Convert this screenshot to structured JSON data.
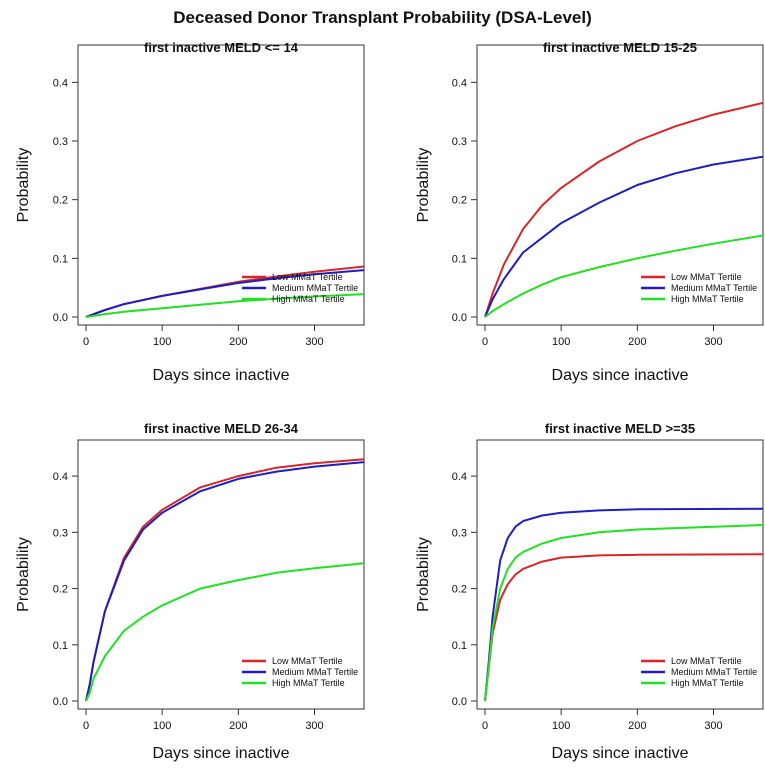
{
  "figure": {
    "title": "Deceased Donor Transplant Probability (DSA-Level)"
  },
  "series_colors": {
    "Low MMaT Tertile": "#d62728",
    "Medium MMaT Tertile": "#1f1fbf",
    "High MMaT Tertile": "#22e022"
  },
  "chart_data": [
    {
      "type": "line",
      "title": "first inactive MELD <= 14",
      "xlabel": "Days since inactive",
      "ylabel": "Probability",
      "xlim": [
        0,
        365
      ],
      "ylim": [
        0,
        0.45
      ],
      "xticks": [
        0,
        100,
        200,
        300
      ],
      "yticks": [
        0.0,
        0.1,
        0.2,
        0.3,
        0.4
      ],
      "legend": "bottom-right",
      "series": [
        {
          "name": "Low MMaT Tertile",
          "x": [
            0,
            25,
            50,
            100,
            150,
            200,
            250,
            300,
            365
          ],
          "y": [
            0,
            0.012,
            0.022,
            0.036,
            0.048,
            0.06,
            0.069,
            0.077,
            0.086
          ]
        },
        {
          "name": "Medium MMaT Tertile",
          "x": [
            0,
            25,
            50,
            100,
            150,
            200,
            250,
            300,
            365
          ],
          "y": [
            0,
            0.012,
            0.022,
            0.036,
            0.047,
            0.058,
            0.066,
            0.073,
            0.08
          ]
        },
        {
          "name": "High MMaT Tertile",
          "x": [
            0,
            25,
            50,
            100,
            150,
            200,
            250,
            300,
            365
          ],
          "y": [
            0,
            0.005,
            0.009,
            0.015,
            0.021,
            0.027,
            0.031,
            0.035,
            0.039
          ]
        }
      ]
    },
    {
      "type": "line",
      "title": "first inactive MELD 15-25",
      "xlabel": "Days since inactive",
      "ylabel": "Probability",
      "xlim": [
        0,
        365
      ],
      "ylim": [
        0,
        0.45
      ],
      "xticks": [
        0,
        100,
        200,
        300
      ],
      "yticks": [
        0.0,
        0.1,
        0.2,
        0.3,
        0.4
      ],
      "legend": "bottom-right",
      "series": [
        {
          "name": "Low MMaT Tertile",
          "x": [
            0,
            10,
            25,
            50,
            75,
            100,
            150,
            200,
            250,
            300,
            365
          ],
          "y": [
            0,
            0.04,
            0.09,
            0.15,
            0.19,
            0.22,
            0.265,
            0.3,
            0.325,
            0.345,
            0.365
          ]
        },
        {
          "name": "Medium MMaT Tertile",
          "x": [
            0,
            10,
            25,
            50,
            75,
            100,
            150,
            200,
            250,
            300,
            365
          ],
          "y": [
            0,
            0.03,
            0.065,
            0.11,
            0.135,
            0.16,
            0.195,
            0.225,
            0.245,
            0.26,
            0.273
          ]
        },
        {
          "name": "High MMaT Tertile",
          "x": [
            0,
            10,
            25,
            50,
            75,
            100,
            150,
            200,
            250,
            300,
            365
          ],
          "y": [
            0,
            0.01,
            0.022,
            0.04,
            0.055,
            0.068,
            0.085,
            0.1,
            0.113,
            0.125,
            0.139
          ]
        }
      ]
    },
    {
      "type": "line",
      "title": "first inactive MELD 26-34",
      "xlabel": "Days since inactive",
      "ylabel": "Probability",
      "xlim": [
        0,
        365
      ],
      "ylim": [
        0,
        0.45
      ],
      "xticks": [
        0,
        100,
        200,
        300
      ],
      "yticks": [
        0.0,
        0.1,
        0.2,
        0.3,
        0.4
      ],
      "legend": "bottom-right",
      "series": [
        {
          "name": "Low MMaT Tertile",
          "x": [
            0,
            5,
            10,
            25,
            50,
            75,
            100,
            150,
            200,
            250,
            300,
            365
          ],
          "y": [
            0,
            0.03,
            0.07,
            0.16,
            0.255,
            0.31,
            0.34,
            0.38,
            0.4,
            0.415,
            0.423,
            0.43
          ]
        },
        {
          "name": "Medium MMaT Tertile",
          "x": [
            0,
            5,
            10,
            25,
            50,
            75,
            100,
            150,
            200,
            250,
            300,
            365
          ],
          "y": [
            0,
            0.03,
            0.07,
            0.16,
            0.25,
            0.305,
            0.335,
            0.373,
            0.395,
            0.408,
            0.417,
            0.425
          ]
        },
        {
          "name": "High MMaT Tertile",
          "x": [
            0,
            5,
            10,
            25,
            50,
            75,
            100,
            150,
            200,
            250,
            300,
            365
          ],
          "y": [
            0,
            0.015,
            0.04,
            0.08,
            0.125,
            0.15,
            0.17,
            0.2,
            0.215,
            0.228,
            0.236,
            0.245
          ]
        }
      ]
    },
    {
      "type": "line",
      "title": "first inactive MELD >=35",
      "xlabel": "Days since inactive",
      "ylabel": "Probability",
      "xlim": [
        0,
        365
      ],
      "ylim": [
        0,
        0.45
      ],
      "xticks": [
        0,
        100,
        200,
        300
      ],
      "yticks": [
        0.0,
        0.1,
        0.2,
        0.3,
        0.4
      ],
      "legend": "bottom-right",
      "series": [
        {
          "name": "Low MMaT Tertile",
          "x": [
            0,
            5,
            10,
            20,
            30,
            40,
            50,
            75,
            100,
            150,
            200,
            365
          ],
          "y": [
            0,
            0.06,
            0.12,
            0.18,
            0.208,
            0.225,
            0.235,
            0.248,
            0.255,
            0.259,
            0.26,
            0.261
          ]
        },
        {
          "name": "Medium MMaT Tertile",
          "x": [
            0,
            5,
            10,
            20,
            30,
            40,
            50,
            75,
            100,
            150,
            200,
            365
          ],
          "y": [
            0,
            0.07,
            0.15,
            0.25,
            0.29,
            0.31,
            0.32,
            0.33,
            0.335,
            0.339,
            0.341,
            0.342
          ]
        },
        {
          "name": "High MMaT Tertile",
          "x": [
            0,
            5,
            10,
            20,
            30,
            40,
            50,
            75,
            100,
            150,
            200,
            365
          ],
          "y": [
            0,
            0.06,
            0.13,
            0.2,
            0.235,
            0.255,
            0.265,
            0.28,
            0.29,
            0.3,
            0.305,
            0.313
          ]
        }
      ]
    }
  ]
}
